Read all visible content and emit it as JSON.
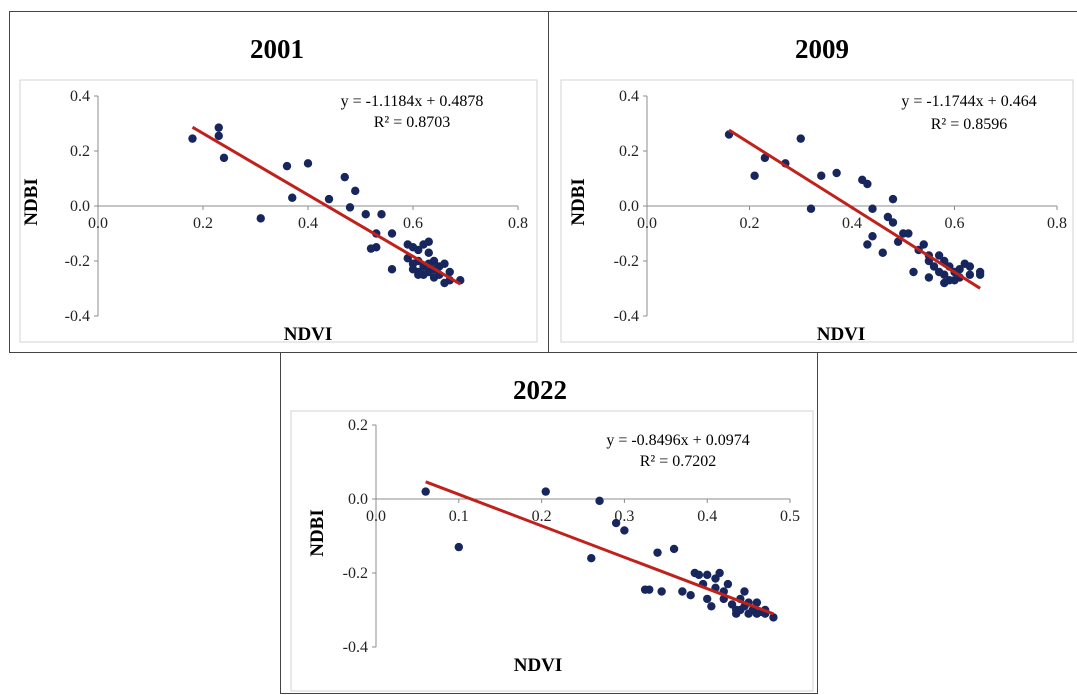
{
  "colors": {
    "point": "#17275e",
    "trend": "#c0211b",
    "axis": "#8c8c8c",
    "frame": "#d3d3d3"
  },
  "chart_data": [
    {
      "type": "scatter",
      "title": "2001",
      "xlabel": "NDVI",
      "ylabel": "NDBI",
      "xlim": [
        0,
        0.8
      ],
      "ylim": [
        -0.4,
        0.4
      ],
      "xticks": [
        "0.0",
        "0.2",
        "0.4",
        "0.6",
        "0.8"
      ],
      "yticks": [
        "-0.4",
        "-0.2",
        "0.0",
        "0.2",
        "0.4"
      ],
      "equation": "y = -1.1184x + 0.4878",
      "r2": "R² = 0.8703",
      "trendline": {
        "slope": -1.1184,
        "intercept": 0.4878,
        "x_range": [
          0.18,
          0.69
        ]
      },
      "grid": false,
      "points": [
        [
          0.18,
          0.245
        ],
        [
          0.23,
          0.285
        ],
        [
          0.23,
          0.255
        ],
        [
          0.24,
          0.175
        ],
        [
          0.31,
          -0.045
        ],
        [
          0.36,
          0.145
        ],
        [
          0.37,
          0.03
        ],
        [
          0.4,
          0.155
        ],
        [
          0.44,
          0.025
        ],
        [
          0.47,
          0.105
        ],
        [
          0.48,
          -0.005
        ],
        [
          0.49,
          0.055
        ],
        [
          0.51,
          -0.03
        ],
        [
          0.52,
          -0.155
        ],
        [
          0.53,
          -0.1
        ],
        [
          0.53,
          -0.15
        ],
        [
          0.54,
          -0.03
        ],
        [
          0.56,
          -0.1
        ],
        [
          0.56,
          -0.23
        ],
        [
          0.59,
          -0.14
        ],
        [
          0.59,
          -0.19
        ],
        [
          0.6,
          -0.15
        ],
        [
          0.6,
          -0.21
        ],
        [
          0.6,
          -0.23
        ],
        [
          0.61,
          -0.16
        ],
        [
          0.61,
          -0.2
        ],
        [
          0.61,
          -0.25
        ],
        [
          0.62,
          -0.14
        ],
        [
          0.62,
          -0.22
        ],
        [
          0.62,
          -0.25
        ],
        [
          0.63,
          -0.17
        ],
        [
          0.63,
          -0.13
        ],
        [
          0.63,
          -0.21
        ],
        [
          0.63,
          -0.24
        ],
        [
          0.64,
          -0.2
        ],
        [
          0.64,
          -0.26
        ],
        [
          0.65,
          -0.22
        ],
        [
          0.65,
          -0.25
        ],
        [
          0.66,
          -0.21
        ],
        [
          0.66,
          -0.28
        ],
        [
          0.67,
          -0.27
        ],
        [
          0.67,
          -0.24
        ],
        [
          0.69,
          -0.27
        ],
        [
          0.61,
          -0.24
        ],
        [
          0.64,
          -0.23
        ]
      ]
    },
    {
      "type": "scatter",
      "title": "2009",
      "xlabel": "NDVI",
      "ylabel": "NDBI",
      "xlim": [
        0,
        0.8
      ],
      "ylim": [
        -0.4,
        0.4
      ],
      "xticks": [
        "0.0",
        "0.2",
        "0.4",
        "0.6",
        "0.8"
      ],
      "yticks": [
        "-0.4",
        "-0.2",
        "0.0",
        "0.2",
        "0.4"
      ],
      "equation": "y = -1.1744x + 0.464",
      "r2": "R² = 0.8596",
      "trendline": {
        "slope": -1.1744,
        "intercept": 0.464,
        "x_range": [
          0.16,
          0.65
        ]
      },
      "grid": false,
      "points": [
        [
          0.16,
          0.26
        ],
        [
          0.21,
          0.11
        ],
        [
          0.23,
          0.175
        ],
        [
          0.27,
          0.155
        ],
        [
          0.3,
          0.245
        ],
        [
          0.32,
          -0.01
        ],
        [
          0.34,
          0.11
        ],
        [
          0.37,
          0.12
        ],
        [
          0.42,
          0.095
        ],
        [
          0.43,
          0.08
        ],
        [
          0.43,
          -0.14
        ],
        [
          0.44,
          -0.01
        ],
        [
          0.44,
          -0.11
        ],
        [
          0.46,
          -0.17
        ],
        [
          0.47,
          -0.04
        ],
        [
          0.48,
          -0.06
        ],
        [
          0.48,
          0.025
        ],
        [
          0.49,
          -0.13
        ],
        [
          0.5,
          -0.1
        ],
        [
          0.51,
          -0.1
        ],
        [
          0.52,
          -0.24
        ],
        [
          0.53,
          -0.16
        ],
        [
          0.54,
          -0.14
        ],
        [
          0.55,
          -0.18
        ],
        [
          0.55,
          -0.2
        ],
        [
          0.55,
          -0.26
        ],
        [
          0.56,
          -0.22
        ],
        [
          0.57,
          -0.18
        ],
        [
          0.57,
          -0.24
        ],
        [
          0.58,
          -0.2
        ],
        [
          0.58,
          -0.25
        ],
        [
          0.58,
          -0.28
        ],
        [
          0.59,
          -0.22
        ],
        [
          0.59,
          -0.27
        ],
        [
          0.6,
          -0.24
        ],
        [
          0.6,
          -0.27
        ],
        [
          0.61,
          -0.23
        ],
        [
          0.61,
          -0.26
        ],
        [
          0.62,
          -0.21
        ],
        [
          0.63,
          -0.25
        ],
        [
          0.63,
          -0.22
        ],
        [
          0.65,
          -0.24
        ],
        [
          0.65,
          -0.25
        ]
      ]
    },
    {
      "type": "scatter",
      "title": "2022",
      "xlabel": "NDVI",
      "ylabel": "NDBI",
      "xlim": [
        0,
        0.5
      ],
      "ylim": [
        -0.4,
        0.2
      ],
      "xticks": [
        "0.0",
        "0.1",
        "0.2",
        "0.3",
        "0.4",
        "0.5"
      ],
      "yticks": [
        "-0.4",
        "-0.2",
        "0.0",
        "0.2"
      ],
      "equation": "y = -0.8496x + 0.0974",
      "r2": "R² = 0.7202",
      "trendline": {
        "slope": -0.8496,
        "intercept": 0.0974,
        "x_range": [
          0.06,
          0.48
        ]
      },
      "grid": false,
      "points": [
        [
          0.06,
          0.02
        ],
        [
          0.1,
          -0.13
        ],
        [
          0.205,
          0.02
        ],
        [
          0.26,
          -0.16
        ],
        [
          0.27,
          -0.005
        ],
        [
          0.29,
          -0.065
        ],
        [
          0.3,
          -0.085
        ],
        [
          0.325,
          -0.245
        ],
        [
          0.33,
          -0.245
        ],
        [
          0.34,
          -0.145
        ],
        [
          0.345,
          -0.25
        ],
        [
          0.36,
          -0.135
        ],
        [
          0.37,
          -0.25
        ],
        [
          0.38,
          -0.26
        ],
        [
          0.385,
          -0.2
        ],
        [
          0.39,
          -0.205
        ],
        [
          0.395,
          -0.23
        ],
        [
          0.4,
          -0.205
        ],
        [
          0.4,
          -0.27
        ],
        [
          0.405,
          -0.29
        ],
        [
          0.41,
          -0.24
        ],
        [
          0.41,
          -0.215
        ],
        [
          0.415,
          -0.2
        ],
        [
          0.42,
          -0.27
        ],
        [
          0.42,
          -0.25
        ],
        [
          0.425,
          -0.23
        ],
        [
          0.43,
          -0.285
        ],
        [
          0.435,
          -0.3
        ],
        [
          0.44,
          -0.27
        ],
        [
          0.44,
          -0.3
        ],
        [
          0.445,
          -0.25
        ],
        [
          0.445,
          -0.29
        ],
        [
          0.45,
          -0.31
        ],
        [
          0.45,
          -0.28
        ],
        [
          0.455,
          -0.3
        ],
        [
          0.46,
          -0.31
        ],
        [
          0.46,
          -0.28
        ],
        [
          0.465,
          -0.305
        ],
        [
          0.47,
          -0.3
        ],
        [
          0.47,
          -0.31
        ],
        [
          0.48,
          -0.32
        ],
        [
          0.435,
          -0.31
        ]
      ]
    }
  ]
}
